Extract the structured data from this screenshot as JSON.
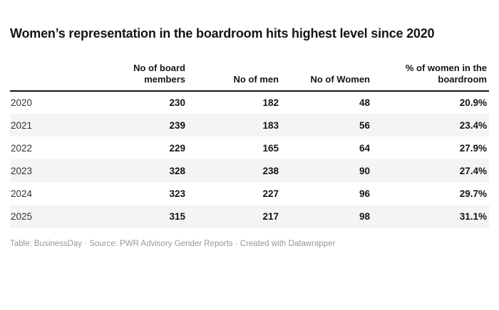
{
  "title": "Women’s representation in the boardroom hits highest level since 2020",
  "table": {
    "headers": [
      {
        "lines": [
          ""
        ]
      },
      {
        "lines": [
          "No of board",
          "members"
        ]
      },
      {
        "lines": [
          "No of men"
        ]
      },
      {
        "lines": [
          "No of Women"
        ]
      },
      {
        "lines": [
          "% of women in the",
          "boardroom"
        ]
      }
    ],
    "rows": [
      [
        "2020",
        "230",
        "182",
        "48",
        "20.9%"
      ],
      [
        "2021",
        "239",
        "183",
        "56",
        "23.4%"
      ],
      [
        "2022",
        "229",
        "165",
        "64",
        "27.9%"
      ],
      [
        "2023",
        "328",
        "238",
        "90",
        "27.4%"
      ],
      [
        "2024",
        "323",
        "227",
        "96",
        "29.7%"
      ],
      [
        "2025",
        "315",
        "217",
        "98",
        "31.1%"
      ]
    ]
  },
  "footer": "Table: BusinessDay · Source: PWR Advisory Gender Reports · Created with Datawrapper",
  "colors": {
    "title_text": "#141414",
    "header_rule": "#141414",
    "row_stripe": "#f4f4f4",
    "body_text": "#151515",
    "year_text": "#333333",
    "footer_text": "#979797",
    "background": "#ffffff"
  },
  "chart_data": {
    "type": "table",
    "title": "Women’s representation in the boardroom hits highest level since 2020",
    "categories": [
      "2020",
      "2021",
      "2022",
      "2023",
      "2024",
      "2025"
    ],
    "columns": [
      "No of board members",
      "No of men",
      "No of Women",
      "% of women in the boardroom"
    ],
    "series": [
      {
        "name": "No of board members",
        "values": [
          230,
          239,
          229,
          328,
          323,
          315
        ]
      },
      {
        "name": "No of men",
        "values": [
          182,
          183,
          165,
          238,
          227,
          217
        ]
      },
      {
        "name": "No of Women",
        "values": [
          48,
          56,
          64,
          90,
          96,
          98
        ]
      },
      {
        "name": "% of women in the boardroom",
        "values": [
          20.9,
          23.4,
          27.9,
          27.4,
          29.7,
          31.1
        ]
      }
    ],
    "footer": "Table: BusinessDay · Source: PWR Advisory Gender Reports · Created with Datawrapper"
  }
}
